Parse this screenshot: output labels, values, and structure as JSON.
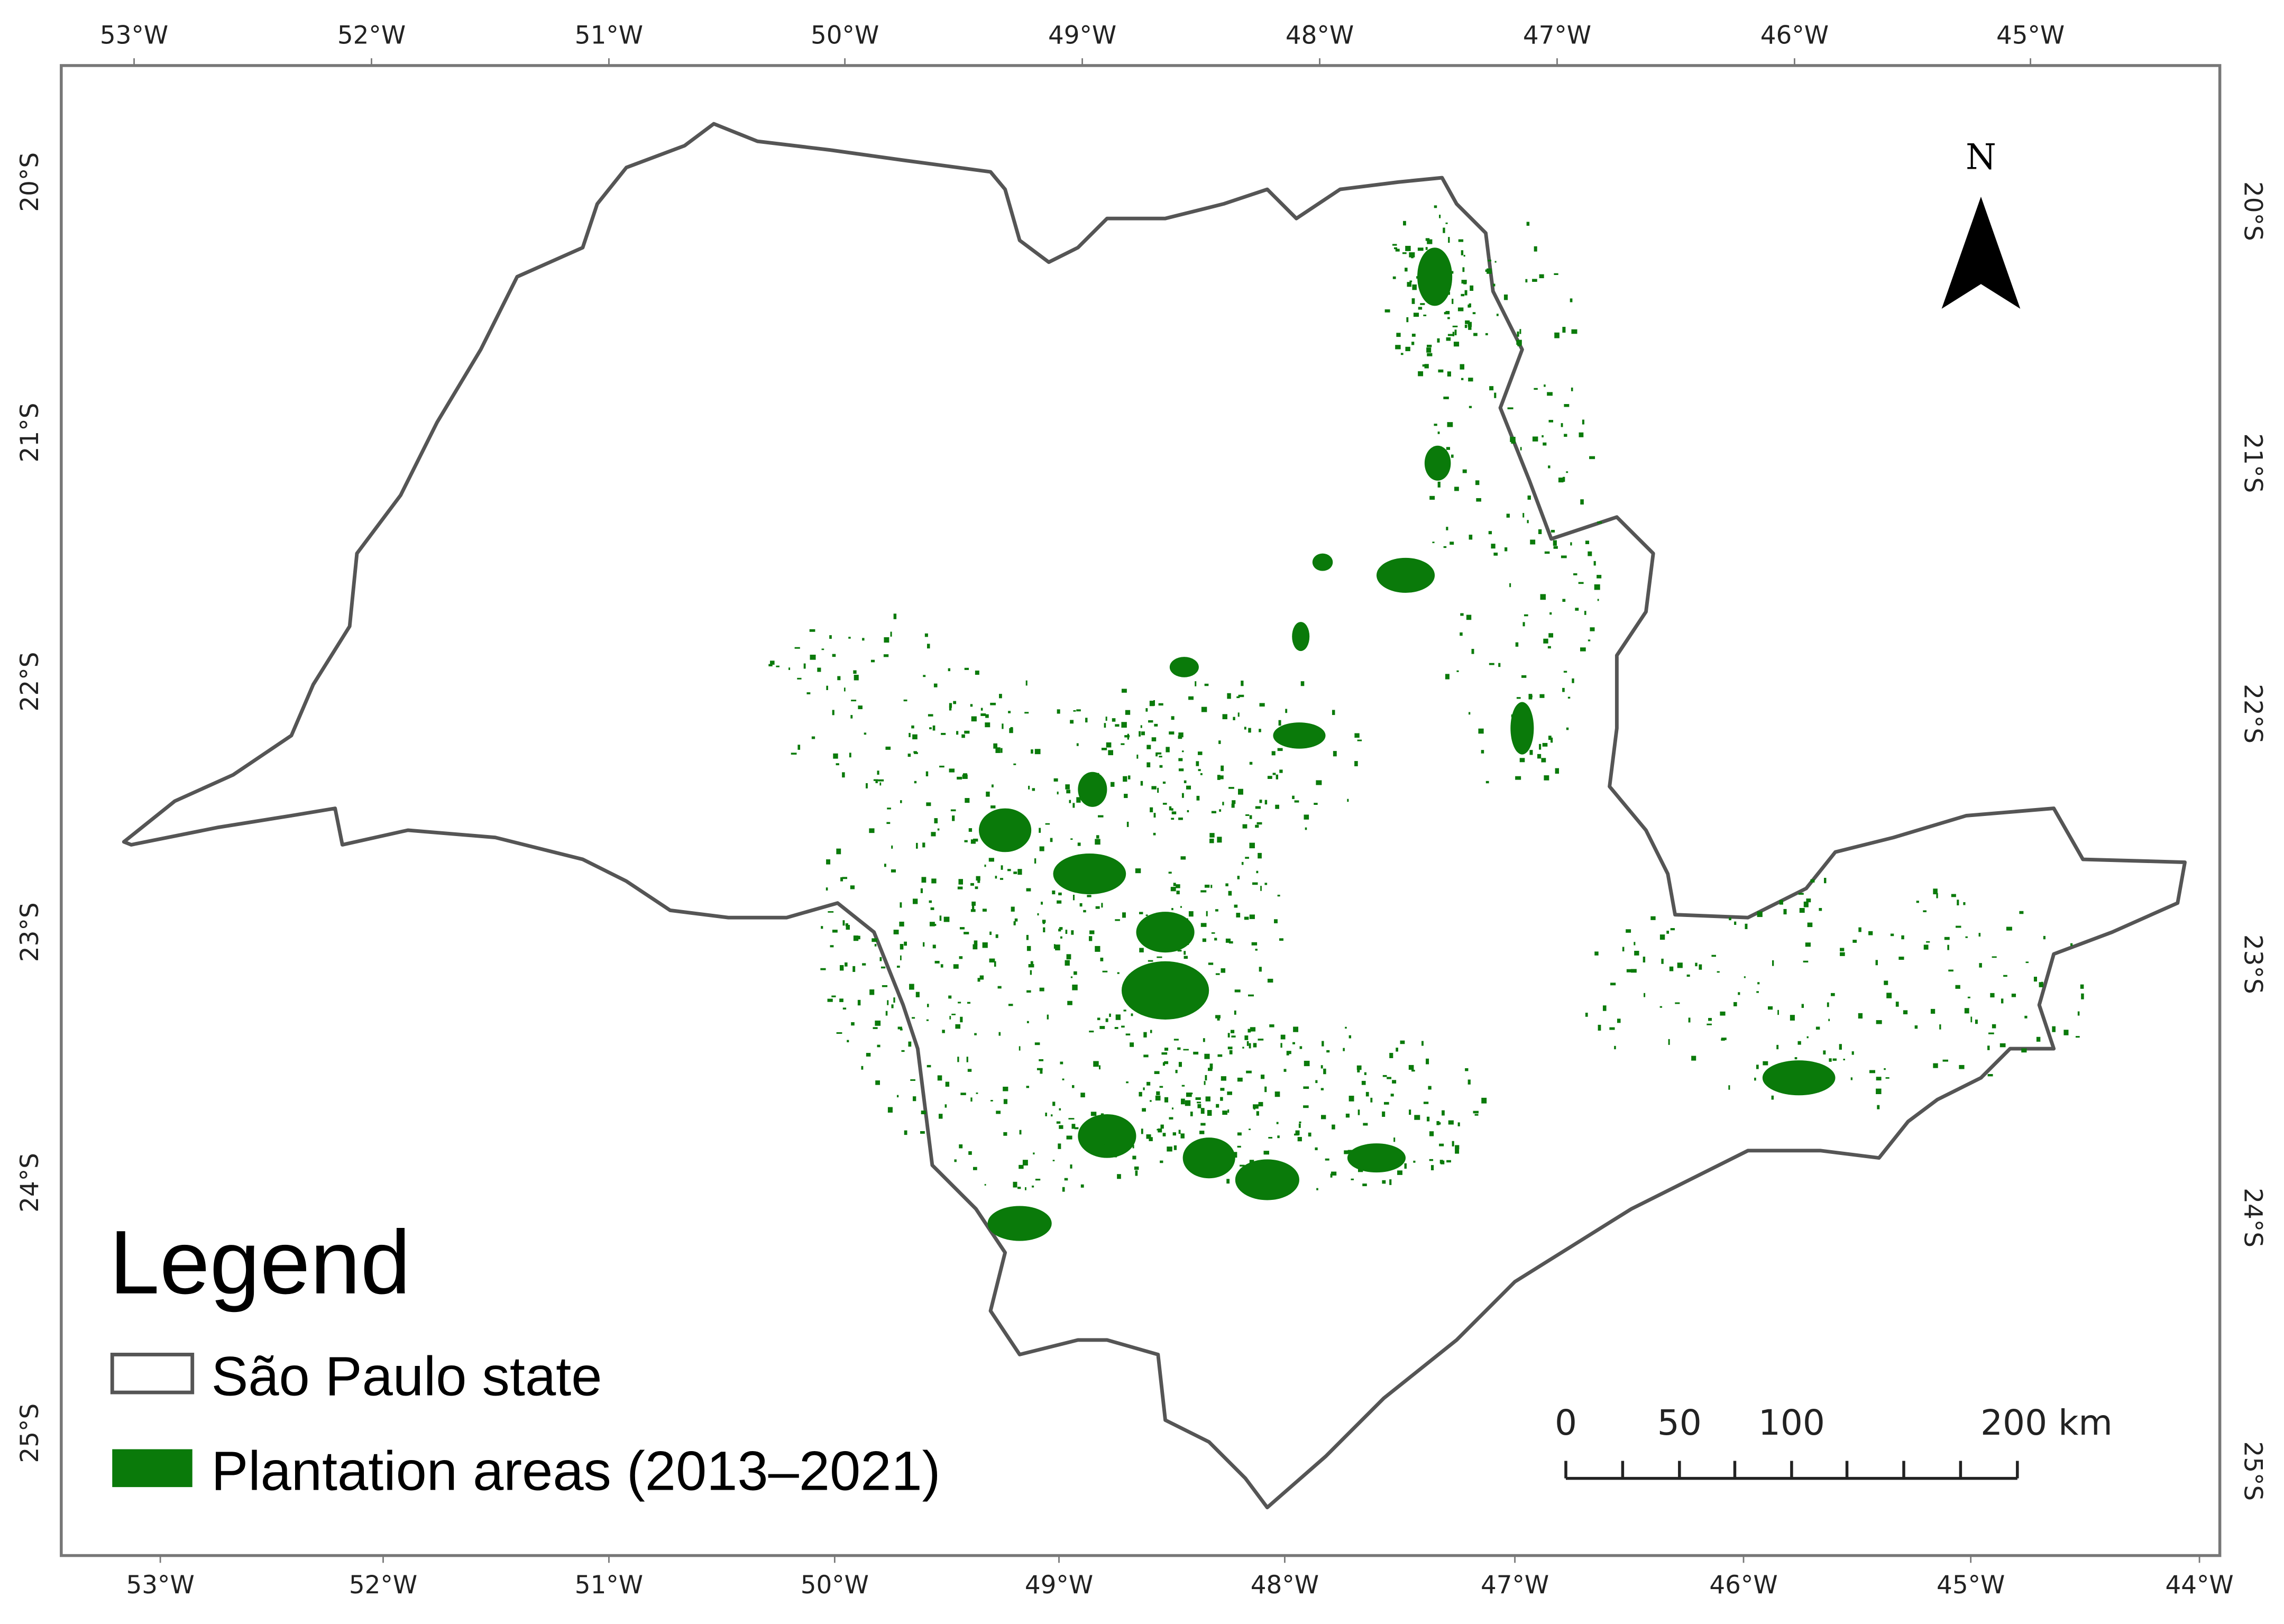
{
  "map": {
    "graticule": {
      "top": [
        "53°W",
        "52°W",
        "51°W",
        "50°W",
        "49°W",
        "48°W",
        "47°W",
        "46°W",
        "45°W"
      ],
      "bottom": [
        "53°W",
        "52°W",
        "51°W",
        "50°W",
        "49°W",
        "48°W",
        "47°W",
        "46°W",
        "45°W",
        "44°W"
      ],
      "left": [
        "20°S",
        "21°S",
        "22°S",
        "23°S",
        "24°S",
        "25°S"
      ],
      "right": [
        "20°S",
        "21°S",
        "22°S",
        "23°S",
        "24°S",
        "25°S"
      ]
    },
    "north_arrow": "N",
    "legend": {
      "title": "Legend",
      "items": [
        "São Paulo state",
        "Plantation areas (2013–2021)"
      ]
    },
    "scale_bar": [
      "0",
      "50",
      "100",
      "200 km"
    ]
  }
}
